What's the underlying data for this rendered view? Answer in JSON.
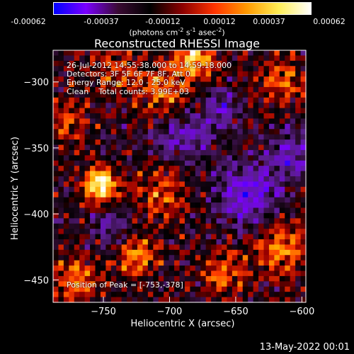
{
  "colorbar": {
    "ticks": [
      "-0.00062",
      "-0.00037",
      "-0.00012",
      "0.00012",
      "0.00037",
      "0.00062"
    ],
    "units_prefix": "(photons cm",
    "units_exp1": "-2",
    "units_mid": " s",
    "units_exp2": "-1",
    "units_mid2": " asec",
    "units_exp3": "-2",
    "units_suffix": ")",
    "colors": [
      "#0000ff",
      "#7a00ff",
      "#3a0a33",
      "#000000",
      "#8b0000",
      "#ff3300",
      "#ff9900",
      "#ffee55",
      "#ffffff"
    ]
  },
  "chart_data": {
    "type": "heatmap",
    "title": "Reconstructed RHESSI Image",
    "xlabel": "Heliocentric X (arcsec)",
    "ylabel": "Heliocentric Y (arcsec)",
    "xlim": [
      -788,
      -597
    ],
    "ylim": [
      -467,
      -276
    ],
    "xticks": [
      -750,
      -700,
      -650,
      -600
    ],
    "yticks": [
      -300,
      -350,
      -400,
      -450
    ],
    "vmin": -0.00062,
    "vmax": 0.00062,
    "peak_position": [
      -753,
      -378
    ],
    "hotspots": [
      {
        "x": -752,
        "y": -378,
        "amp": 1.0,
        "sigma": 9
      },
      {
        "x": -703,
        "y": -307,
        "amp": 0.55,
        "sigma": 14
      },
      {
        "x": -680,
        "y": -283,
        "amp": 0.75,
        "sigma": 10
      },
      {
        "x": -725,
        "y": -432,
        "amp": 0.6,
        "sigma": 10
      },
      {
        "x": -615,
        "y": -425,
        "amp": 0.55,
        "sigma": 14
      },
      {
        "x": -770,
        "y": -450,
        "amp": 0.5,
        "sigma": 13
      },
      {
        "x": -660,
        "y": -445,
        "amp": 0.45,
        "sigma": 12
      },
      {
        "x": -705,
        "y": -385,
        "amp": 0.4,
        "sigma": 14
      },
      {
        "x": -615,
        "y": -300,
        "amp": 0.45,
        "sigma": 12
      },
      {
        "x": -780,
        "y": -330,
        "amp": 0.35,
        "sigma": 12
      },
      {
        "x": -740,
        "y": -290,
        "amp": 0.35,
        "sigma": 14
      }
    ],
    "coldspots": [
      {
        "x": -640,
        "y": -385,
        "amp": 0.6,
        "sigma": 16
      },
      {
        "x": -610,
        "y": -355,
        "amp": 0.45,
        "sigma": 12
      },
      {
        "x": -690,
        "y": -340,
        "amp": 0.45,
        "sigma": 15
      },
      {
        "x": -660,
        "y": -320,
        "amp": 0.4,
        "sigma": 10
      },
      {
        "x": -745,
        "y": -410,
        "amp": 0.3,
        "sigma": 12
      }
    ]
  },
  "annotations": {
    "time_range": "26-Jul-2012 14:55:38.000 to 14:59:18.000",
    "detectors": "Detectors: 3F 5F 6F 7F 8F, Att 0",
    "energy": "Energy Range: 12.0 - 25.0 keV",
    "method": "Clean    Total counts: 3.99E+03",
    "peak": "Position of Peak = [-753,-378]"
  },
  "footer": {
    "timestamp": "13-May-2022 00:01"
  }
}
